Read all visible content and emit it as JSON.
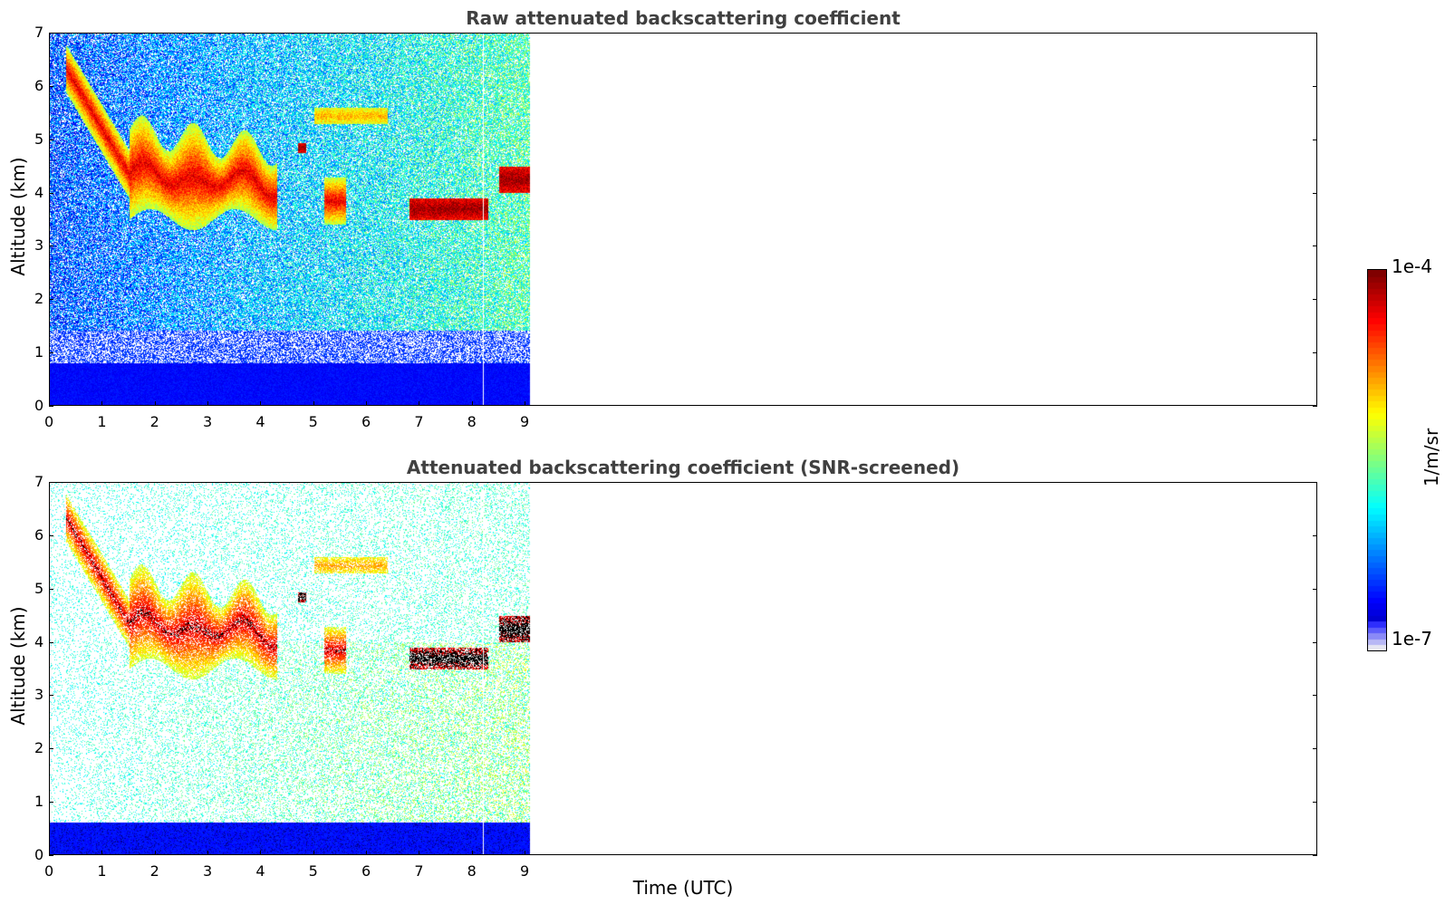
{
  "chart_data": [
    {
      "type": "heatmap",
      "title": "Raw attenuated backscattering coefficient",
      "xlabel": "",
      "ylabel": "Altitude (km)",
      "xlim": [
        0,
        24
      ],
      "ylim": [
        0,
        7
      ],
      "x_ticks": [
        0,
        1,
        2,
        3,
        4,
        5,
        6,
        7,
        8,
        9
      ],
      "y_ticks": [
        0,
        1,
        2,
        3,
        4,
        5,
        6,
        7
      ],
      "data_extent_x": [
        0,
        9.1
      ],
      "cloud_layers": [
        {
          "x_start": 0.3,
          "x_end": 1.5,
          "altitude_top": 6.8,
          "altitude_bottom": 4.2
        },
        {
          "x_start": 1.5,
          "x_end": 4.3,
          "altitude_top": 5.2,
          "altitude_bottom": 3.4
        },
        {
          "x_start": 4.7,
          "x_end": 4.85,
          "altitude_top": 4.95,
          "altitude_bottom": 4.75
        },
        {
          "x_start": 5.2,
          "x_end": 5.6,
          "altitude_top": 4.3,
          "altitude_bottom": 3.4
        },
        {
          "x_start": 5.0,
          "x_end": 6.4,
          "altitude_top": 5.6,
          "altitude_bottom": 5.3
        },
        {
          "x_start": 6.8,
          "x_end": 8.3,
          "altitude_top": 3.9,
          "altitude_bottom": 3.5
        },
        {
          "x_start": 8.5,
          "x_end": 9.1,
          "altitude_top": 4.5,
          "altitude_bottom": 4.0
        }
      ],
      "boundary_layer_top": 0.8
    },
    {
      "type": "heatmap",
      "title": "Attenuated backscattering coefficient (SNR-screened)",
      "xlabel": "Time (UTC)",
      "ylabel": "Altitude (km)",
      "xlim": [
        0,
        24
      ],
      "ylim": [
        0,
        7
      ],
      "x_ticks": [
        0,
        1,
        2,
        3,
        4,
        5,
        6,
        7,
        8,
        9
      ],
      "y_ticks": [
        0,
        1,
        2,
        3,
        4,
        5,
        6,
        7
      ],
      "data_extent_x": [
        0,
        9.1
      ],
      "cloud_layers": [
        {
          "x_start": 0.3,
          "x_end": 1.5,
          "altitude_top": 6.8,
          "altitude_bottom": 4.2
        },
        {
          "x_start": 1.5,
          "x_end": 4.3,
          "altitude_top": 5.2,
          "altitude_bottom": 3.4
        },
        {
          "x_start": 4.7,
          "x_end": 4.85,
          "altitude_top": 4.95,
          "altitude_bottom": 4.75
        },
        {
          "x_start": 5.2,
          "x_end": 5.6,
          "altitude_top": 4.3,
          "altitude_bottom": 3.4
        },
        {
          "x_start": 5.0,
          "x_end": 6.4,
          "altitude_top": 5.6,
          "altitude_bottom": 5.3
        },
        {
          "x_start": 6.8,
          "x_end": 8.3,
          "altitude_top": 3.9,
          "altitude_bottom": 3.5
        },
        {
          "x_start": 8.5,
          "x_end": 9.1,
          "altitude_top": 4.5,
          "altitude_bottom": 4.0
        }
      ],
      "boundary_layer_top": 0.6
    }
  ],
  "colorbar": {
    "label": "1/m/sr",
    "min_label": "1e-7",
    "max_label": "1e-4",
    "scale": "log",
    "range": [
      1e-07,
      0.0001
    ],
    "colormap": "jet"
  }
}
